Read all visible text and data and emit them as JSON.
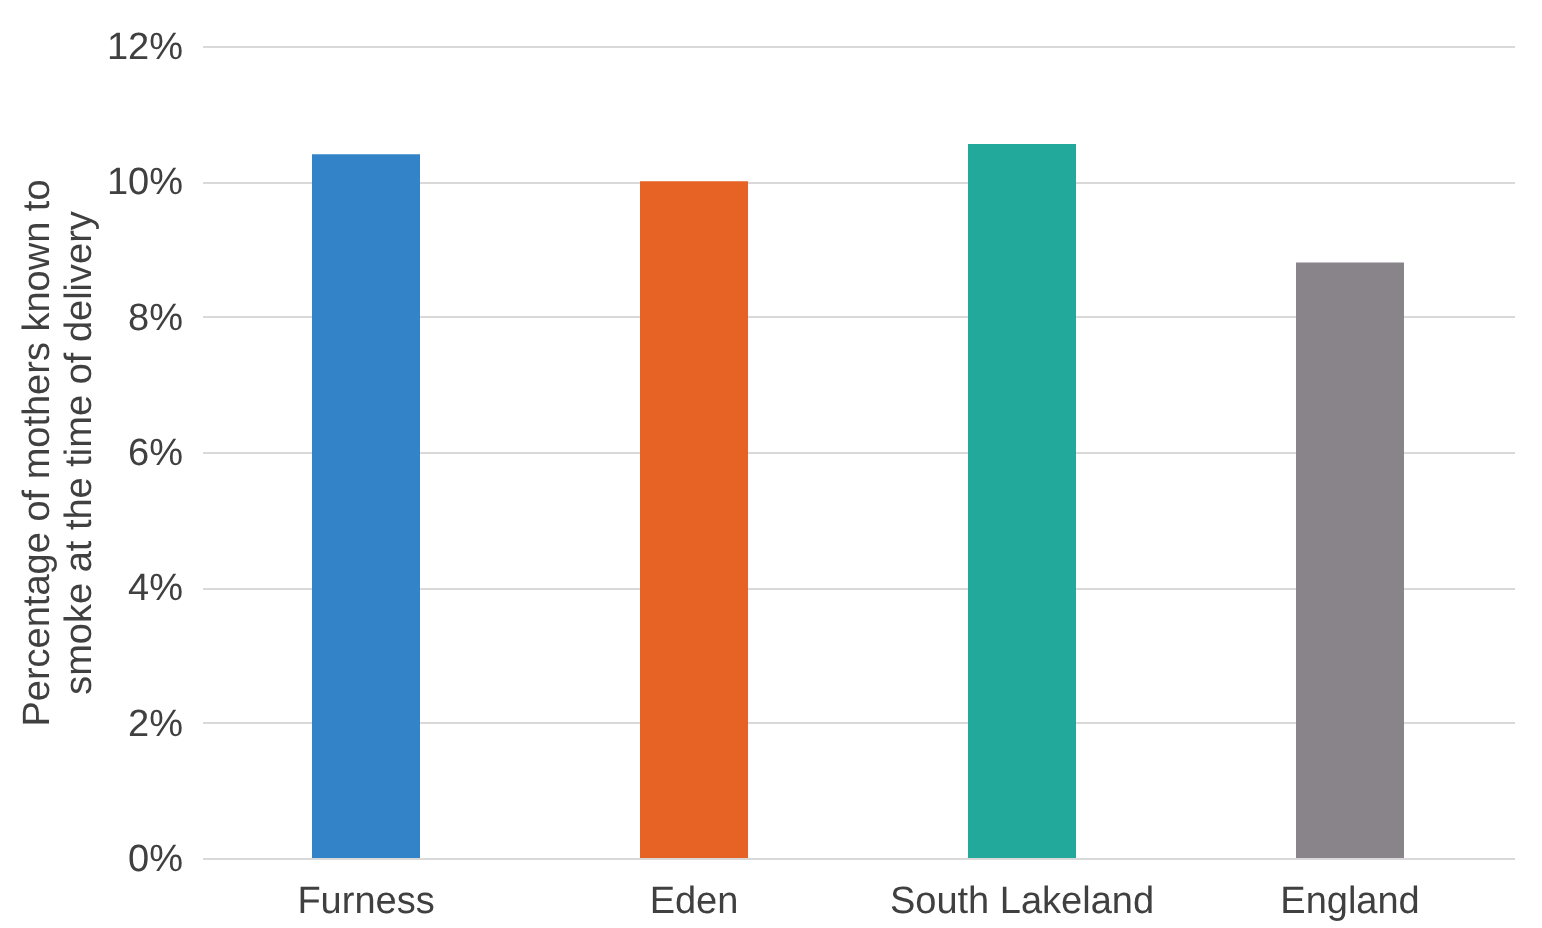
{
  "chart_data": {
    "type": "bar",
    "ylabel": "Percentage of mothers known to\nsmoke at the time of delivery",
    "categories": [
      "Furness",
      "Eden",
      "South Lakeland",
      "England"
    ],
    "values": [
      10.4,
      10.0,
      10.55,
      8.8
    ],
    "colors": [
      "#3283c8",
      "#e66225",
      "#22a99b",
      "#88848a"
    ],
    "ylim": [
      0,
      12
    ],
    "yticks": [
      {
        "value": 0,
        "label": "0%"
      },
      {
        "value": 2,
        "label": "2%"
      },
      {
        "value": 4,
        "label": "4%"
      },
      {
        "value": 6,
        "label": "6%"
      },
      {
        "value": 8,
        "label": "8%"
      },
      {
        "value": 10,
        "label": "10%"
      },
      {
        "value": 12,
        "label": "12%"
      }
    ],
    "grid": "y"
  }
}
